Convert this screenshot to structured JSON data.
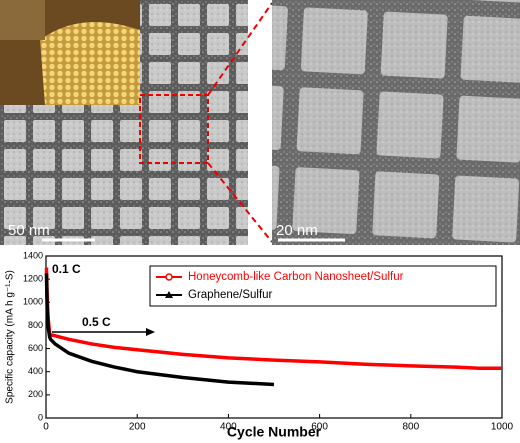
{
  "images": [
    {
      "scale_label": "50 nm"
    },
    {
      "scale_label": "20 nm"
    }
  ],
  "chart_data": {
    "type": "line",
    "x_label": "Cycle Number",
    "y_label": "Specific capacity (mA h g⁻¹-S)",
    "annotations": [
      "0.1 C",
      "0.5 C"
    ],
    "xlim": [
      0,
      1000
    ],
    "xticks": [
      0,
      200,
      400,
      600,
      800,
      1000
    ],
    "ylim": [
      0,
      1400
    ],
    "yticks": [
      0,
      200,
      400,
      600,
      800,
      1000,
      1200,
      1400
    ],
    "legend": "upper right",
    "series": [
      {
        "name": "Honeycomb-like Carbon Nanosheet/Sulfur",
        "color": "#ff0000",
        "marker": "circle",
        "x": [
          1,
          2,
          3,
          5,
          8,
          10,
          20,
          50,
          100,
          150,
          200,
          300,
          400,
          500,
          600,
          700,
          800,
          900,
          950,
          1000
        ],
        "values": [
          1300,
          1150,
          1000,
          850,
          730,
          720,
          710,
          680,
          640,
          610,
          590,
          550,
          520,
          500,
          485,
          465,
          450,
          440,
          430,
          430
        ]
      },
      {
        "name": "Graphene/Sulfur",
        "color": "#000000",
        "marker": "triangle",
        "x": [
          1,
          2,
          3,
          5,
          8,
          10,
          20,
          50,
          100,
          150,
          200,
          300,
          400,
          500
        ],
        "values": [
          1250,
          1050,
          900,
          780,
          700,
          680,
          640,
          560,
          490,
          440,
          400,
          350,
          310,
          290
        ]
      }
    ]
  }
}
